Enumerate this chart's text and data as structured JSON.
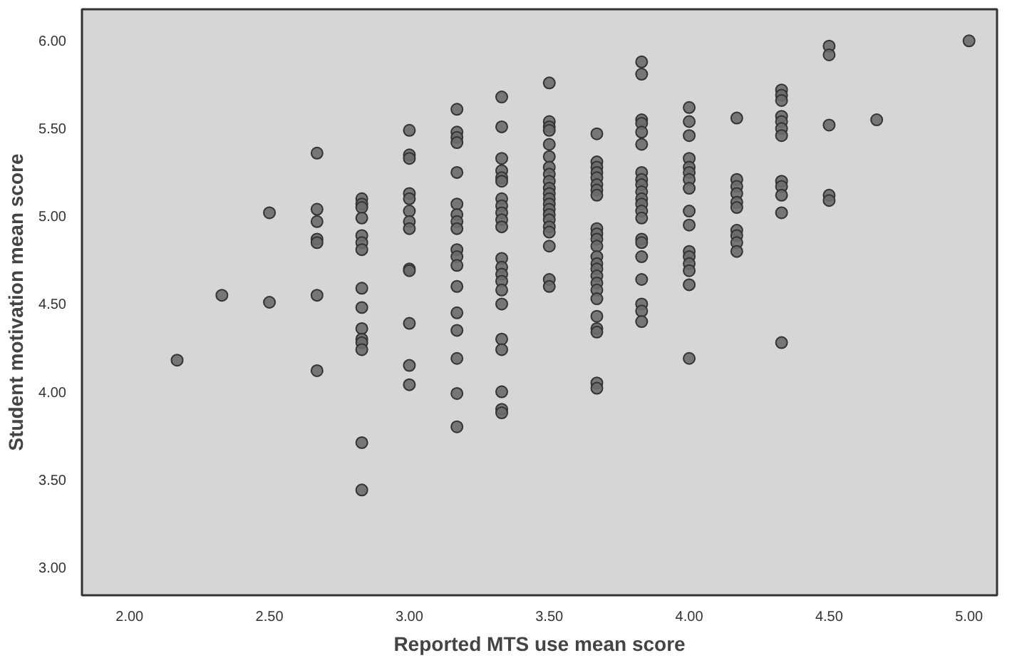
{
  "chart_data": {
    "type": "scatter",
    "xlabel": "Reported MTS use mean score",
    "ylabel": "Student motivation mean score",
    "xlim": [
      1.83,
      5.1
    ],
    "ylim": [
      2.84,
      6.18
    ],
    "xticks": [
      {
        "value": 2,
        "label": "2.00"
      },
      {
        "value": 2.5,
        "label": "2.50"
      },
      {
        "value": 3,
        "label": "3.00"
      },
      {
        "value": 3.5,
        "label": "3.50"
      },
      {
        "value": 4,
        "label": "4.00"
      },
      {
        "value": 4.5,
        "label": "4.50"
      },
      {
        "value": 5,
        "label": "5.00"
      }
    ],
    "yticks": [
      {
        "value": 3,
        "label": "3.00"
      },
      {
        "value": 3.5,
        "label": "3.50"
      },
      {
        "value": 4,
        "label": "4.00"
      },
      {
        "value": 4.5,
        "label": "4.50"
      },
      {
        "value": 5,
        "label": "5.00"
      },
      {
        "value": 5.5,
        "label": "5.50"
      },
      {
        "value": 6,
        "label": "6.00"
      }
    ],
    "grid": false,
    "marker": "circle",
    "series": [
      {
        "color": "#6b6b6b",
        "x": [
          2.17,
          2.33,
          2.5,
          2.5,
          2.67,
          2.67,
          2.67,
          2.67,
          2.67,
          2.67,
          2.67,
          2.83,
          2.83,
          2.83,
          2.83,
          2.83,
          2.83,
          2.83,
          2.83,
          2.83,
          2.83,
          2.83,
          2.83,
          2.83,
          2.83,
          2.83,
          3.0,
          3.0,
          3.0,
          3.0,
          3.0,
          3.0,
          3.0,
          3.0,
          3.0,
          3.0,
          3.0,
          3.0,
          3.0,
          3.17,
          3.17,
          3.17,
          3.17,
          3.17,
          3.17,
          3.17,
          3.17,
          3.17,
          3.17,
          3.17,
          3.17,
          3.17,
          3.17,
          3.17,
          3.17,
          3.17,
          3.17,
          3.33,
          3.33,
          3.33,
          3.33,
          3.33,
          3.33,
          3.33,
          3.33,
          3.33,
          3.33,
          3.33,
          3.33,
          3.33,
          3.33,
          3.33,
          3.33,
          3.33,
          3.33,
          3.33,
          3.33,
          3.33,
          3.33,
          3.5,
          3.5,
          3.5,
          3.5,
          3.5,
          3.5,
          3.5,
          3.5,
          3.5,
          3.5,
          3.5,
          3.5,
          3.5,
          3.5,
          3.5,
          3.5,
          3.5,
          3.5,
          3.5,
          3.5,
          3.5,
          3.67,
          3.67,
          3.67,
          3.67,
          3.67,
          3.67,
          3.67,
          3.67,
          3.67,
          3.67,
          3.67,
          3.67,
          3.67,
          3.67,
          3.67,
          3.67,
          3.67,
          3.67,
          3.67,
          3.67,
          3.67,
          3.67,
          3.67,
          3.67,
          3.83,
          3.83,
          3.83,
          3.83,
          3.83,
          3.83,
          3.83,
          3.83,
          3.83,
          3.83,
          3.83,
          3.83,
          3.83,
          3.83,
          3.83,
          3.83,
          3.83,
          3.83,
          3.83,
          3.83,
          3.83,
          4.0,
          4.0,
          4.0,
          4.0,
          4.0,
          4.0,
          4.0,
          4.0,
          4.0,
          4.0,
          4.0,
          4.0,
          4.0,
          4.0,
          4.0,
          4.0,
          4.17,
          4.17,
          4.17,
          4.17,
          4.17,
          4.17,
          4.17,
          4.17,
          4.17,
          4.17,
          4.33,
          4.33,
          4.33,
          4.33,
          4.33,
          4.33,
          4.33,
          4.33,
          4.33,
          4.33,
          4.33,
          4.33,
          4.5,
          4.5,
          4.5,
          4.5,
          4.5,
          4.67,
          5.0
        ],
        "values": [
          4.18,
          4.55,
          5.02,
          4.51,
          5.36,
          5.04,
          4.97,
          4.87,
          4.85,
          4.55,
          4.12,
          5.1,
          5.07,
          5.05,
          4.99,
          4.89,
          4.85,
          4.81,
          4.59,
          4.48,
          4.36,
          4.3,
          4.28,
          4.24,
          3.71,
          3.44,
          5.49,
          5.35,
          5.33,
          5.13,
          5.1,
          5.03,
          4.97,
          4.93,
          4.7,
          4.69,
          4.39,
          4.15,
          4.04,
          5.61,
          5.48,
          5.45,
          5.42,
          5.25,
          5.07,
          5.01,
          4.97,
          4.93,
          4.81,
          4.77,
          4.72,
          4.6,
          4.45,
          4.35,
          4.19,
          3.99,
          3.8,
          5.68,
          5.51,
          5.33,
          5.26,
          5.22,
          5.2,
          5.1,
          5.06,
          5.02,
          4.98,
          4.94,
          4.76,
          4.71,
          4.67,
          4.63,
          4.58,
          4.5,
          4.3,
          4.24,
          4.0,
          3.9,
          3.88,
          5.76,
          5.54,
          5.51,
          5.49,
          5.41,
          5.34,
          5.28,
          5.24,
          5.2,
          5.16,
          5.13,
          5.1,
          5.07,
          5.04,
          5.01,
          4.98,
          4.94,
          4.91,
          4.83,
          4.64,
          4.6,
          5.47,
          5.31,
          5.28,
          5.25,
          5.22,
          5.18,
          5.15,
          5.12,
          4.93,
          4.9,
          4.87,
          4.83,
          4.77,
          4.73,
          4.7,
          4.66,
          4.62,
          4.58,
          4.53,
          4.43,
          4.36,
          4.34,
          4.05,
          4.02,
          5.88,
          5.81,
          5.55,
          5.53,
          5.48,
          5.41,
          5.25,
          5.21,
          5.18,
          5.14,
          5.1,
          5.07,
          5.03,
          4.99,
          4.87,
          4.85,
          4.77,
          4.64,
          4.5,
          4.46,
          4.4,
          5.62,
          5.54,
          5.46,
          5.33,
          5.28,
          5.25,
          5.21,
          5.16,
          5.03,
          4.95,
          4.8,
          4.77,
          4.73,
          4.69,
          4.61,
          4.19,
          5.56,
          5.21,
          5.17,
          5.13,
          5.08,
          5.05,
          4.92,
          4.89,
          4.85,
          4.8,
          5.72,
          5.69,
          5.66,
          5.57,
          5.54,
          5.5,
          5.46,
          5.2,
          5.17,
          5.12,
          5.02,
          4.28,
          5.97,
          5.92,
          5.52,
          5.12,
          5.09,
          5.55,
          6.0
        ]
      }
    ]
  }
}
